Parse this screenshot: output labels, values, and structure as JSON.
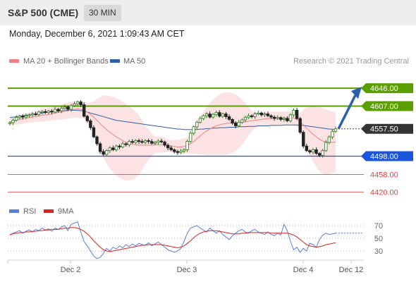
{
  "header": {
    "title": "S&P 500 (CME)",
    "interval": "30 MIN",
    "datetime": "Monday, December 6, 2021 1:09:43 AM CET"
  },
  "legend": {
    "ma20_bb": "MA 20 + Bollinger Bands",
    "ma50": "MA 50",
    "credit": "Research © 2021 Trading Central",
    "ma20_color": "#f08080",
    "ma50_color": "#3060a8"
  },
  "rsi_legend": {
    "rsi": "RSI",
    "ma9": "9MA",
    "rsi_color": "#5a7fd4",
    "ma9_color": "#dd2222"
  },
  "chart_data": [
    {
      "type": "candlestick",
      "title": "S&P 500 (CME)",
      "ylim": [
        4400,
        4680
      ],
      "x_ticks": [
        "Dec 2",
        "Dec 3",
        "Dec 4",
        "Dec 12"
      ],
      "last_price": "4557.50",
      "levels": [
        {
          "label": "4646.00",
          "value": 4646,
          "color": "#5a9e00",
          "kind": "resistance"
        },
        {
          "label": "4607.00",
          "value": 4607,
          "color": "#5a9e00",
          "kind": "resistance"
        },
        {
          "label": "4498.00",
          "value": 4498,
          "color": "#1a55dd",
          "kind": "support"
        },
        {
          "label": "4458.00",
          "value": 4458,
          "color": "#e04545",
          "kind": "support"
        },
        {
          "label": "4420.00",
          "value": 4420,
          "color": "#e04545",
          "kind": "support"
        }
      ],
      "forecast": {
        "from": 4557.5,
        "to": 4646,
        "color": "#2a5fb0"
      },
      "close_series": [
        4571,
        4576,
        4582,
        4585,
        4583,
        4586,
        4588,
        4590,
        4589,
        4594,
        4595,
        4593,
        4596,
        4594,
        4600,
        4597,
        4602,
        4605,
        4600,
        4608,
        4612,
        4616,
        4610,
        4585,
        4575,
        4560,
        4540,
        4525,
        4508,
        4502,
        4510,
        4516,
        4512,
        4520,
        4518,
        4525,
        4523,
        4530,
        4528,
        4532,
        4530,
        4528,
        4532,
        4530,
        4526,
        4528,
        4531,
        4529,
        4522,
        4516,
        4512,
        4508,
        4506,
        4509,
        4512,
        4530,
        4548,
        4562,
        4572,
        4580,
        4586,
        4590,
        4583,
        4589,
        4593,
        4585,
        4590,
        4584,
        4578,
        4570,
        4564,
        4572,
        4577,
        4582,
        4586,
        4584,
        4590,
        4592,
        4588,
        4590,
        4586,
        4583,
        4580,
        4582,
        4578,
        4580,
        4575,
        4588,
        4598,
        4580,
        4550,
        4520,
        4510,
        4507,
        4512,
        4504,
        4500,
        4510,
        4528,
        4540,
        4552,
        4557.5
      ],
      "ma20_series": [
        4572,
        4574,
        4576,
        4578,
        4579,
        4580,
        4582,
        4583,
        4584,
        4586,
        4587,
        4588,
        4589,
        4590,
        4592,
        4593,
        4594,
        4596,
        4597,
        4599,
        4600,
        4601,
        4600,
        4598,
        4594,
        4589,
        4583,
        4576,
        4569,
        4562,
        4556,
        4550,
        4545,
        4540,
        4536,
        4532,
        4528,
        4526,
        4524,
        4523,
        4522,
        4522,
        4522,
        4522,
        4522,
        4523,
        4523,
        4523,
        4522,
        4521,
        4520,
        4519,
        4518,
        4518,
        4519,
        4521,
        4525,
        4530,
        4536,
        4542,
        4548,
        4553,
        4557,
        4561,
        4564,
        4566,
        4568,
        4569,
        4570,
        4570,
        4571,
        4571,
        4572,
        4573,
        4574,
        4575,
        4576,
        4577,
        4578,
        4579,
        4580,
        4580,
        4580,
        4580,
        4581,
        4581,
        4581,
        4582,
        4581,
        4578,
        4573,
        4566,
        4559,
        4552,
        4546,
        4540,
        4535,
        4531,
        4529,
        4528,
        4528,
        4529
      ],
      "ma50_series": [
        4582,
        4583,
        4584,
        4585,
        4586,
        4587,
        4588,
        4589,
        4590,
        4591,
        4592,
        4593,
        4594,
        4595,
        4596,
        4596,
        4597,
        4597,
        4598,
        4598,
        4598,
        4598,
        4597,
        4596,
        4594,
        4592,
        4590,
        4588,
        4586,
        4584,
        4582,
        4580,
        4578,
        4576,
        4575,
        4574,
        4573,
        4572,
        4571,
        4570,
        4569,
        4568,
        4567,
        4566,
        4565,
        4564,
        4563,
        4562,
        4561,
        4560,
        4559,
        4558,
        4557,
        4557,
        4556,
        4556,
        4556,
        4556,
        4556,
        4557,
        4557,
        4558,
        4558,
        4559,
        4559,
        4560,
        4560,
        4560,
        4561,
        4561,
        4561,
        4562,
        4562,
        4562,
        4563,
        4563,
        4563,
        4564,
        4564,
        4564,
        4564,
        4565,
        4565,
        4565,
        4565,
        4566,
        4566,
        4566,
        4566,
        4566,
        4565,
        4565,
        4564,
        4563,
        4562,
        4561,
        4560,
        4559,
        4558,
        4557,
        4557,
        4556
      ]
    },
    {
      "type": "line",
      "title": "RSI",
      "ylim": [
        10,
        90
      ],
      "y_ticks": [
        70,
        50,
        30
      ],
      "series": [
        {
          "name": "RSI",
          "values": [
            55,
            58,
            60,
            62,
            58,
            61,
            63,
            60,
            64,
            62,
            66,
            63,
            65,
            61,
            66,
            64,
            68,
            70,
            62,
            72,
            74,
            76,
            60,
            45,
            38,
            30,
            22,
            18,
            20,
            26,
            34,
            30,
            36,
            33,
            38,
            35,
            40,
            37,
            41,
            38,
            42,
            40,
            39,
            43,
            38,
            41,
            44,
            40,
            36,
            32,
            30,
            28,
            30,
            34,
            45,
            58,
            66,
            68,
            70,
            66,
            63,
            60,
            66,
            62,
            58,
            62,
            56,
            52,
            48,
            54,
            58,
            62,
            64,
            60,
            58,
            62,
            64,
            60,
            58,
            56,
            60,
            56,
            54,
            58,
            55,
            72,
            62,
            45,
            32,
            36,
            28,
            34,
            30,
            42,
            40,
            36,
            48,
            55,
            58,
            56,
            57,
            58
          ]
        },
        {
          "name": "9MA",
          "values": [
            56,
            57,
            58,
            59,
            59,
            60,
            60,
            61,
            61,
            62,
            62,
            63,
            63,
            64,
            64,
            64,
            65,
            66,
            66,
            67,
            67,
            66,
            64,
            61,
            57,
            52,
            46,
            41,
            36,
            32,
            30,
            29,
            30,
            31,
            32,
            33,
            34,
            35,
            36,
            37,
            38,
            39,
            39,
            40,
            40,
            40,
            40,
            40,
            39,
            38,
            37,
            36,
            35,
            36,
            38,
            42,
            46,
            51,
            55,
            58,
            60,
            61,
            62,
            62,
            62,
            61,
            60,
            59,
            58,
            57,
            57,
            57,
            58,
            58,
            59,
            59,
            59,
            59,
            59,
            59,
            59,
            58,
            58,
            58,
            58,
            58,
            58,
            57,
            55,
            52,
            48,
            44,
            40,
            38,
            37,
            36,
            37,
            38,
            40,
            41,
            42,
            43
          ]
        }
      ]
    }
  ]
}
